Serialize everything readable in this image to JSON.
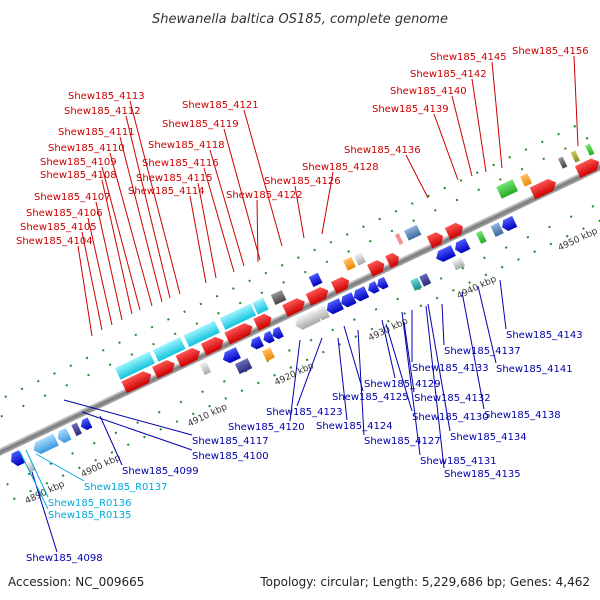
{
  "title": "Shewanella baltica OS185, complete genome",
  "accession": "Accession: NC_009665",
  "topology": "Topology: circular; Length: 5,229,686 bp; Genes: 4,462",
  "colors": {
    "red": "#cc0000",
    "blue": "#0000aa",
    "cyan": "#00aadd"
  },
  "kbp_marks": [
    {
      "id": "kbp-4890",
      "text": "4890 kbp"
    },
    {
      "id": "kbp-4900",
      "text": "4900 kbp"
    },
    {
      "id": "kbp-4910",
      "text": "4910 kbp"
    },
    {
      "id": "kbp-4920",
      "text": "4920 kbp"
    },
    {
      "id": "kbp-4930",
      "text": "4930 kbp"
    },
    {
      "id": "kbp-4940",
      "text": "4940 kbp"
    },
    {
      "id": "kbp-4950",
      "text": "4950 kbp"
    }
  ],
  "labels": [
    {
      "id": "l4104",
      "text": "Shew185_4104",
      "color": "red"
    },
    {
      "id": "l4105",
      "text": "Shew185_4105",
      "color": "red"
    },
    {
      "id": "l4106",
      "text": "Shew185_4106",
      "color": "red"
    },
    {
      "id": "l4107",
      "text": "Shew185_4107",
      "color": "red"
    },
    {
      "id": "l4108",
      "text": "Shew185_4108",
      "color": "red"
    },
    {
      "id": "l4109",
      "text": "Shew185_4109",
      "color": "red"
    },
    {
      "id": "l4110",
      "text": "Shew185_4110",
      "color": "red"
    },
    {
      "id": "l4111",
      "text": "Shew185_4111",
      "color": "red"
    },
    {
      "id": "l4112",
      "text": "Shew185_4112",
      "color": "red"
    },
    {
      "id": "l4113",
      "text": "Shew185_4113",
      "color": "red"
    },
    {
      "id": "l4114",
      "text": "Shew185_4114",
      "color": "red"
    },
    {
      "id": "l4115",
      "text": "Shew185_4115",
      "color": "red"
    },
    {
      "id": "l4116",
      "text": "Shew185_4116",
      "color": "red"
    },
    {
      "id": "l4118",
      "text": "Shew185_4118",
      "color": "red"
    },
    {
      "id": "l4119",
      "text": "Shew185_4119",
      "color": "red"
    },
    {
      "id": "l4121",
      "text": "Shew185_4121",
      "color": "red"
    },
    {
      "id": "l4122",
      "text": "Shew185_4122",
      "color": "red"
    },
    {
      "id": "l4126",
      "text": "Shew185_4126",
      "color": "red"
    },
    {
      "id": "l4128",
      "text": "Shew185_4128",
      "color": "red"
    },
    {
      "id": "l4136",
      "text": "Shew185_4136",
      "color": "red"
    },
    {
      "id": "l4139",
      "text": "Shew185_4139",
      "color": "red"
    },
    {
      "id": "l4140",
      "text": "Shew185_4140",
      "color": "red"
    },
    {
      "id": "l4142",
      "text": "Shew185_4142",
      "color": "red"
    },
    {
      "id": "l4145",
      "text": "Shew185_4145",
      "color": "red"
    },
    {
      "id": "l4156",
      "text": "Shew185_4156",
      "color": "red"
    },
    {
      "id": "l4117",
      "text": "Shew185_4117",
      "color": "blue"
    },
    {
      "id": "l4100",
      "text": "Shew185_4100",
      "color": "blue"
    },
    {
      "id": "l4099",
      "text": "Shew185_4099",
      "color": "blue"
    },
    {
      "id": "l4120",
      "text": "Shew185_4120",
      "color": "blue"
    },
    {
      "id": "l4123",
      "text": "Shew185_4123",
      "color": "blue"
    },
    {
      "id": "l4124",
      "text": "Shew185_4124",
      "color": "blue"
    },
    {
      "id": "l4125",
      "text": "Shew185_4125",
      "color": "blue"
    },
    {
      "id": "l4127",
      "text": "Shew185_4127",
      "color": "blue"
    },
    {
      "id": "l4129",
      "text": "Shew185_4129",
      "color": "blue"
    },
    {
      "id": "l4130",
      "text": "Shew185_4130",
      "color": "blue"
    },
    {
      "id": "l4131",
      "text": "Shew185_4131",
      "color": "blue"
    },
    {
      "id": "l4132",
      "text": "Shew185_4132",
      "color": "blue"
    },
    {
      "id": "l4133",
      "text": "Shew185_4133",
      "color": "blue"
    },
    {
      "id": "l4134",
      "text": "Shew185_4134",
      "color": "blue"
    },
    {
      "id": "l4135",
      "text": "Shew185_4135",
      "color": "blue"
    },
    {
      "id": "l4137",
      "text": "Shew185_4137",
      "color": "blue"
    },
    {
      "id": "l4138",
      "text": "Shew185_4138",
      "color": "blue"
    },
    {
      "id": "l4141",
      "text": "Shew185_4141",
      "color": "blue"
    },
    {
      "id": "l4143",
      "text": "Shew185_4143",
      "color": "blue"
    },
    {
      "id": "l4098",
      "text": "Shew185_4098",
      "color": "blue"
    },
    {
      "id": "lR0137",
      "text": "Shew185_R0137",
      "color": "cyan"
    },
    {
      "id": "lR0136",
      "text": "Shew185_R0136",
      "color": "cyan"
    },
    {
      "id": "lR0135",
      "text": "Shew185_R0135",
      "color": "cyan"
    }
  ]
}
